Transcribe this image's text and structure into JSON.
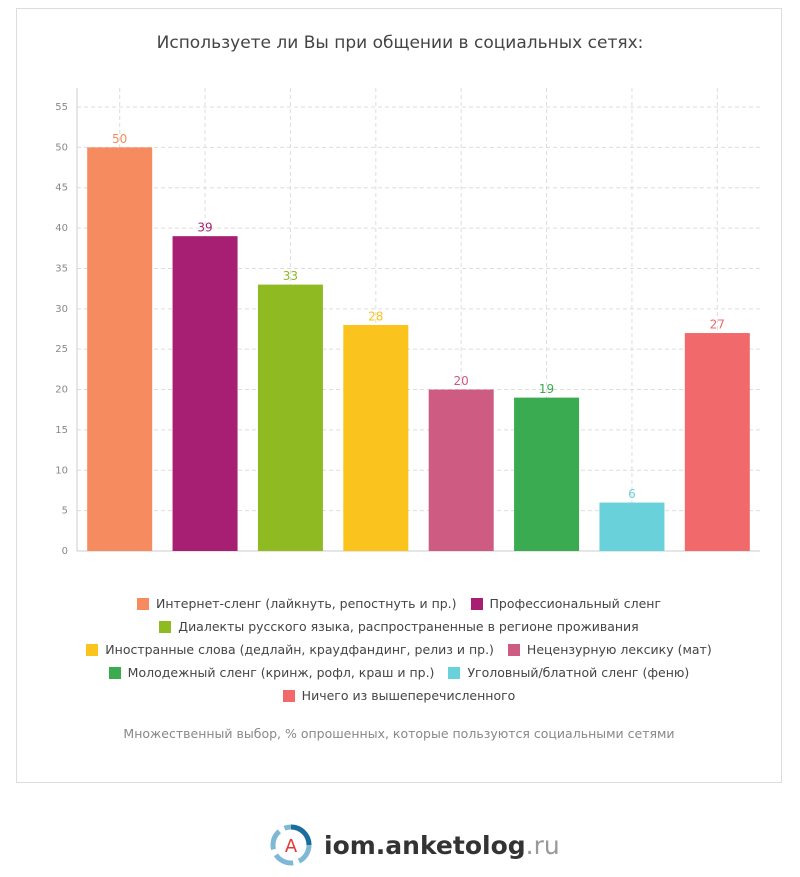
{
  "chart_data": {
    "type": "bar",
    "title": "Используете ли Вы при общении в социальных сетях:",
    "series": [
      {
        "name": "Интернет-сленг (лайкнуть, репостнуть и пр.)",
        "color": "#f58b5e",
        "values": [
          50
        ]
      },
      {
        "name": "Профессиональный сленг",
        "color": "#a61f72",
        "values": [
          39
        ]
      },
      {
        "name": "Диалекты русского языка, распространенные в регионе проживания",
        "color": "#8fba22",
        "values": [
          33
        ]
      },
      {
        "name": "Иностранные слова (дедлайн, краудфандинг, релиз и пр.)",
        "color": "#fac31e",
        "values": [
          28
        ]
      },
      {
        "name": "Нецензурную лексику (мат)",
        "color": "#cd5b82",
        "values": [
          20
        ]
      },
      {
        "name": "Молодежный сленг (кринж, рофл, краш и пр.)",
        "color": "#3aab51",
        "values": [
          19
        ]
      },
      {
        "name": "Уголовный/блатной сленг (феню)",
        "color": "#68d1da",
        "values": [
          6
        ]
      },
      {
        "name": "Ничего из вышеперечисленного",
        "color": "#f2696c",
        "values": [
          27
        ]
      }
    ],
    "ylim": [
      0,
      55
    ],
    "yticks": [
      0,
      5,
      10,
      15,
      20,
      25,
      30,
      35,
      40,
      45,
      50,
      55
    ],
    "grid": true,
    "note": "Множественный выбор, % опрошенных, которые пользуются социальными сетями"
  },
  "logo": {
    "letter": "A",
    "name": "iom.anketolog",
    "tld": ".ru"
  }
}
